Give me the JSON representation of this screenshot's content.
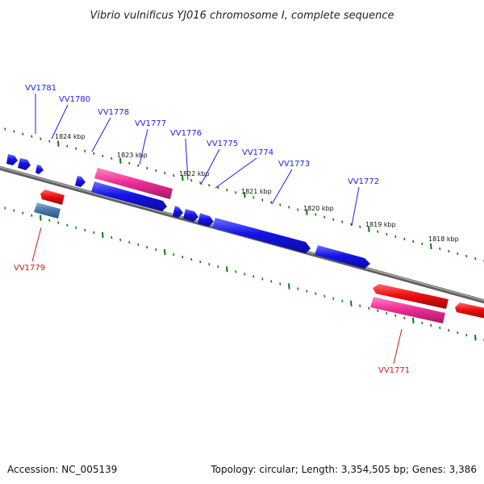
{
  "title": "Vibrio vulnificus YJ016 chromosome I, complete sequence",
  "footer": {
    "accession": "Accession: NC_005139",
    "summary": "Topology: circular; Length: 3,354,505 bp; Genes: 3,386"
  },
  "kbp_labels": [
    "1824 kbp",
    "1823 kbp",
    "1822 kbp",
    "1821 kbp",
    "1820 kbp",
    "1819 kbp",
    "1818 kbp"
  ],
  "gene_labels_top": [
    "VV1781",
    "VV1780",
    "VV1778",
    "VV1777",
    "VV1776",
    "VV1775",
    "VV1774",
    "VV1773",
    "VV1772"
  ],
  "gene_labels_bottom": [
    "VV1779",
    "VV1771"
  ],
  "colors": {
    "backbone": "#808080",
    "forward_gene": "#1010ee",
    "reverse_gene": "#e41010",
    "pink_gene": "#f0389a",
    "steel_gene": "#4a7ab0",
    "tick": "#0a7a0a",
    "label_top": "#1a1aff",
    "label_bottom": "#e01010"
  }
}
